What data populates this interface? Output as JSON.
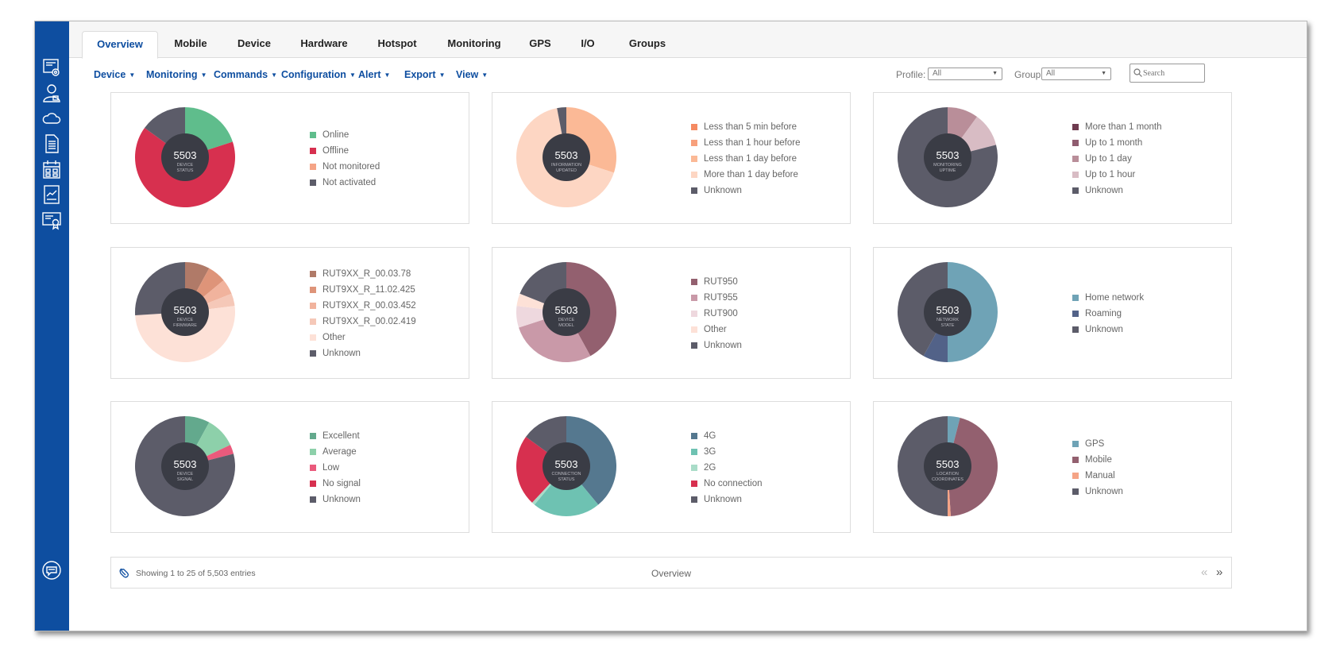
{
  "tabs": [
    "Overview",
    "Mobile",
    "Device",
    "Hardware",
    "Hotspot",
    "Monitoring",
    "GPS",
    "I/O",
    "Groups"
  ],
  "menus": [
    "Device",
    "Monitoring",
    "Commands",
    "Configuration",
    "Alert",
    "Export",
    "View"
  ],
  "filters": {
    "profile_label": "Profile:",
    "profile_value": "All",
    "group_label": "Group:",
    "group_value": "All",
    "search_placeholder": "Search"
  },
  "sidebar_icons": [
    "dashboard-settings-icon",
    "user-icon",
    "cloud-icon",
    "document-icon",
    "calendar-icon",
    "report-chart-icon",
    "certificate-icon",
    "chat-icon"
  ],
  "chart_data": [
    {
      "type": "pie",
      "title": "DEVICE STATUS",
      "total": "5503",
      "series": [
        {
          "name": "Online",
          "value": 20,
          "color": "#5fbd8c"
        },
        {
          "name": "Offline",
          "value": 65,
          "color": "#d7304f"
        },
        {
          "name": "Not monitored",
          "value": 0,
          "color": "#f5a486"
        },
        {
          "name": "Not activated",
          "value": 15,
          "color": "#5c5c69"
        }
      ]
    },
    {
      "type": "pie",
      "title": "INFORMATION UPDATED",
      "total": "5503",
      "series": [
        {
          "name": "Less than 5 min before",
          "value": 0,
          "color": "#f58a62"
        },
        {
          "name": "Less than 1 hour before",
          "value": 0,
          "color": "#f7a07c"
        },
        {
          "name": "Less than 1 day before",
          "value": 30,
          "color": "#fbb996"
        },
        {
          "name": "More than 1 day before",
          "value": 67,
          "color": "#fdd6c3"
        },
        {
          "name": "Unknown",
          "value": 3,
          "color": "#5c5c69"
        }
      ]
    },
    {
      "type": "pie",
      "title": "MONITORING UPTIME",
      "total": "5503",
      "series": [
        {
          "name": "More than 1 month",
          "value": 0,
          "color": "#6e3b4f"
        },
        {
          "name": "Up to 1 month",
          "value": 0,
          "color": "#8f5c6f"
        },
        {
          "name": "Up to 1 day",
          "value": 10,
          "color": "#b98e99"
        },
        {
          "name": "Up to 1 hour",
          "value": 11,
          "color": "#d8bcc4"
        },
        {
          "name": "Unknown",
          "value": 79,
          "color": "#5c5c69"
        }
      ]
    },
    {
      "type": "pie",
      "title": "DEVICE FIRMWARE",
      "total": "5503",
      "series": [
        {
          "name": "RUT9XX_R_00.03.78",
          "value": 8,
          "color": "#b07a68"
        },
        {
          "name": "RUT9XX_R_11.02.425",
          "value": 6,
          "color": "#de9479"
        },
        {
          "name": "RUT9XX_R_00.03.452",
          "value": 5,
          "color": "#f1b39d"
        },
        {
          "name": "RUT9XX_R_00.02.419",
          "value": 4,
          "color": "#f5c8b8"
        },
        {
          "name": "Other",
          "value": 51,
          "color": "#fde1d7"
        },
        {
          "name": "Unknown",
          "value": 26,
          "color": "#5c5c69"
        }
      ]
    },
    {
      "type": "pie",
      "title": "DEVICE MODEL",
      "total": "5503",
      "series": [
        {
          "name": "RUT950",
          "value": 42,
          "color": "#93606f"
        },
        {
          "name": "RUT955",
          "value": 28,
          "color": "#c999a8"
        },
        {
          "name": "RUT900",
          "value": 7,
          "color": "#eed8de"
        },
        {
          "name": "Other",
          "value": 4,
          "color": "#fde1d7"
        },
        {
          "name": "Unknown",
          "value": 19,
          "color": "#5c5c69"
        }
      ]
    },
    {
      "type": "pie",
      "title": "NETWORK STATE",
      "total": "5503",
      "series": [
        {
          "name": "Home network",
          "value": 50,
          "color": "#6fa3b6"
        },
        {
          "name": "Roaming",
          "value": 8,
          "color": "#526288"
        },
        {
          "name": "Unknown",
          "value": 42,
          "color": "#5c5c69"
        }
      ]
    },
    {
      "type": "pie",
      "title": "DEVICE SIGNAL",
      "total": "5503",
      "series": [
        {
          "name": "Excellent",
          "value": 8,
          "color": "#63a98d"
        },
        {
          "name": "Average",
          "value": 10,
          "color": "#8dd0aa"
        },
        {
          "name": "Low",
          "value": 3,
          "color": "#ea5a7c"
        },
        {
          "name": "No signal",
          "value": 0,
          "color": "#d7304f"
        },
        {
          "name": "Unknown",
          "value": 79,
          "color": "#5c5c69"
        }
      ]
    },
    {
      "type": "pie",
      "title": "CONNECTION STATUS",
      "total": "5503",
      "series": [
        {
          "name": "4G",
          "value": 39,
          "color": "#55788f"
        },
        {
          "name": "3G",
          "value": 22,
          "color": "#6ec2b2"
        },
        {
          "name": "2G",
          "value": 1,
          "color": "#a9dcc8"
        },
        {
          "name": "No connection",
          "value": 23,
          "color": "#d7304f"
        },
        {
          "name": "Unknown",
          "value": 15,
          "color": "#5c5c69"
        }
      ]
    },
    {
      "type": "pie",
      "title": "LOCATION COORDINATES",
      "total": "5503",
      "series": [
        {
          "name": "GPS",
          "value": 4,
          "color": "#6fa3b6"
        },
        {
          "name": "Mobile",
          "value": 45,
          "color": "#93606f"
        },
        {
          "name": "Manual",
          "value": 1,
          "color": "#f5a486"
        },
        {
          "name": "Unknown",
          "value": 50,
          "color": "#5c5c69"
        }
      ]
    }
  ],
  "footer": {
    "entries_text": "Showing 1 to 25 of 5,503 entries",
    "title": "Overview",
    "prev": "«",
    "next": "»"
  }
}
